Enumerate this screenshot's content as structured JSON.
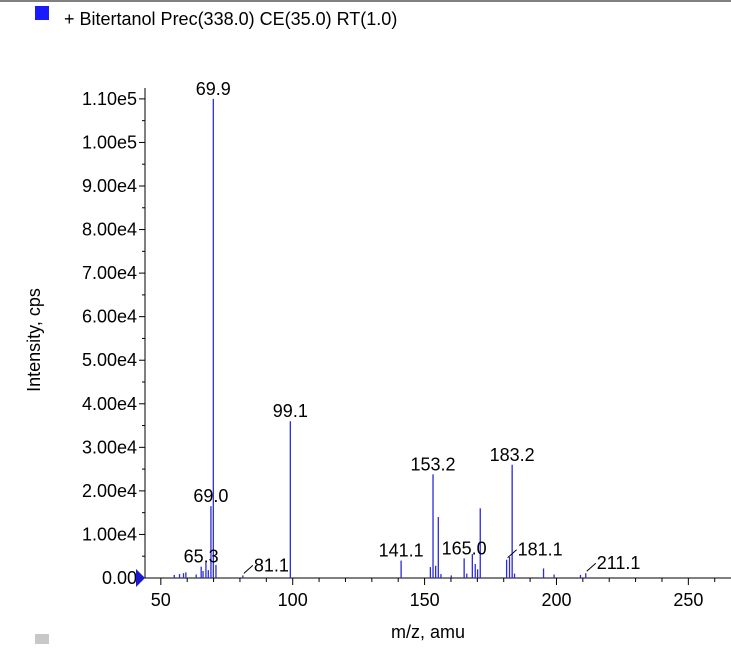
{
  "legend": {
    "label": "+ Bitertanol Prec(338.0) CE(35.0) RT(1.0)",
    "color": "#1a1aff"
  },
  "colors": {
    "peak": "#2a2adb",
    "axis": "#000000",
    "marker": "#1a1acc"
  },
  "chart_data": {
    "type": "bar",
    "title": "",
    "xlabel": "m/z, amu",
    "ylabel": "Intensity, cps",
    "xlim": [
      44,
      262
    ],
    "ylim": [
      0,
      112500
    ],
    "grid": false,
    "legend_position": "top-left",
    "x_ticks": [
      {
        "value": 50,
        "label": "50"
      },
      {
        "value": 100,
        "label": "100"
      },
      {
        "value": 150,
        "label": "150"
      },
      {
        "value": 200,
        "label": "200"
      },
      {
        "value": 250,
        "label": "250"
      }
    ],
    "y_ticks": [
      {
        "value": 0,
        "label": "0.00"
      },
      {
        "value": 10000,
        "label": "1.00e4"
      },
      {
        "value": 20000,
        "label": "2.00e4"
      },
      {
        "value": 30000,
        "label": "3.00e4"
      },
      {
        "value": 40000,
        "label": "4.00e4"
      },
      {
        "value": 50000,
        "label": "5.00e4"
      },
      {
        "value": 60000,
        "label": "6.00e4"
      },
      {
        "value": 70000,
        "label": "7.00e4"
      },
      {
        "value": 80000,
        "label": "8.00e4"
      },
      {
        "value": 90000,
        "label": "9.00e4"
      },
      {
        "value": 100000,
        "label": "1.00e5"
      },
      {
        "value": 110000,
        "label": "1.10e5"
      }
    ],
    "peaks": [
      {
        "mz": 55.1,
        "intensity": 700
      },
      {
        "mz": 57.1,
        "intensity": 900
      },
      {
        "mz": 58.6,
        "intensity": 1100
      },
      {
        "mz": 59.5,
        "intensity": 1300
      },
      {
        "mz": 63.4,
        "intensity": 800
      },
      {
        "mz": 65.3,
        "intensity": 2600
      },
      {
        "mz": 66.0,
        "intensity": 1600
      },
      {
        "mz": 67.1,
        "intensity": 3500
      },
      {
        "mz": 68.0,
        "intensity": 1800
      },
      {
        "mz": 69.0,
        "intensity": 16500
      },
      {
        "mz": 69.9,
        "intensity": 110000
      },
      {
        "mz": 70.9,
        "intensity": 3000
      },
      {
        "mz": 81.1,
        "intensity": 600
      },
      {
        "mz": 99.1,
        "intensity": 36000
      },
      {
        "mz": 141.1,
        "intensity": 4000
      },
      {
        "mz": 152.2,
        "intensity": 2500
      },
      {
        "mz": 153.2,
        "intensity": 23800
      },
      {
        "mz": 154.2,
        "intensity": 2800
      },
      {
        "mz": 155.2,
        "intensity": 14000
      },
      {
        "mz": 156.2,
        "intensity": 900
      },
      {
        "mz": 160.1,
        "intensity": 600
      },
      {
        "mz": 165.0,
        "intensity": 4500
      },
      {
        "mz": 166.0,
        "intensity": 1000
      },
      {
        "mz": 168.1,
        "intensity": 5500
      },
      {
        "mz": 169.2,
        "intensity": 3200
      },
      {
        "mz": 170.1,
        "intensity": 2000
      },
      {
        "mz": 171.1,
        "intensity": 16000
      },
      {
        "mz": 181.1,
        "intensity": 4200
      },
      {
        "mz": 182.2,
        "intensity": 4800
      },
      {
        "mz": 183.2,
        "intensity": 26000
      },
      {
        "mz": 184.1,
        "intensity": 1000
      },
      {
        "mz": 195.1,
        "intensity": 2200
      },
      {
        "mz": 199.1,
        "intensity": 800
      },
      {
        "mz": 209.1,
        "intensity": 700
      },
      {
        "mz": 211.1,
        "intensity": 1100
      }
    ],
    "annotations": [
      {
        "text": "69.9",
        "mz": 69.9,
        "intensity": 110000,
        "side": "top",
        "leader": false
      },
      {
        "text": "99.1",
        "mz": 99.1,
        "intensity": 36000,
        "side": "top",
        "leader": false
      },
      {
        "text": "153.2",
        "mz": 153.2,
        "intensity": 23800,
        "side": "top",
        "leader": false
      },
      {
        "text": "183.2",
        "mz": 183.2,
        "intensity": 26000,
        "side": "top",
        "leader": false
      },
      {
        "text": "69.0",
        "mz": 69.0,
        "intensity": 16500,
        "side": "top",
        "leader": false
      },
      {
        "text": "65.3",
        "mz": 65.3,
        "intensity": 2600,
        "side": "top",
        "leader": false
      },
      {
        "text": "141.1",
        "mz": 141.1,
        "intensity": 4000,
        "side": "top",
        "leader": false
      },
      {
        "text": "165.0",
        "mz": 165.0,
        "intensity": 4500,
        "side": "top",
        "leader": false
      },
      {
        "text": "81.1",
        "mz": 81.1,
        "intensity": 600,
        "side": "right",
        "leader": true
      },
      {
        "text": "181.1",
        "mz": 181.1,
        "intensity": 4200,
        "side": "right",
        "leader": true
      },
      {
        "text": "211.1",
        "mz": 211.1,
        "intensity": 1100,
        "side": "right",
        "leader": true
      }
    ]
  }
}
